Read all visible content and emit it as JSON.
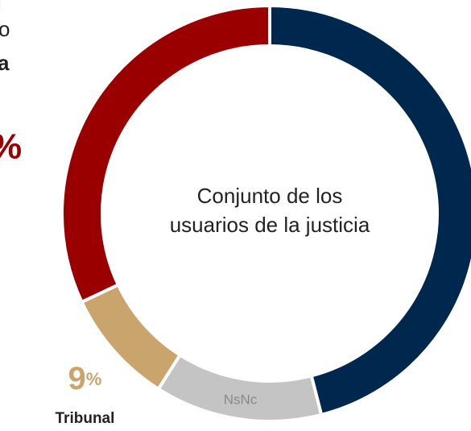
{
  "side_text": [
    "l",
    "o",
    "a",
    "%"
  ],
  "chart_data": {
    "type": "donut",
    "center_label": [
      "Conjunto de los",
      "usuarios de la justicia"
    ],
    "categories": [
      null,
      "NsNc",
      "Tribunal",
      null
    ],
    "values": [
      46,
      13,
      9,
      32
    ],
    "value_labels": [
      null,
      null,
      "9%",
      null
    ],
    "colors": [
      "#00274d",
      "#c4c4c4",
      "#c9a46c",
      "#9b0000"
    ]
  }
}
